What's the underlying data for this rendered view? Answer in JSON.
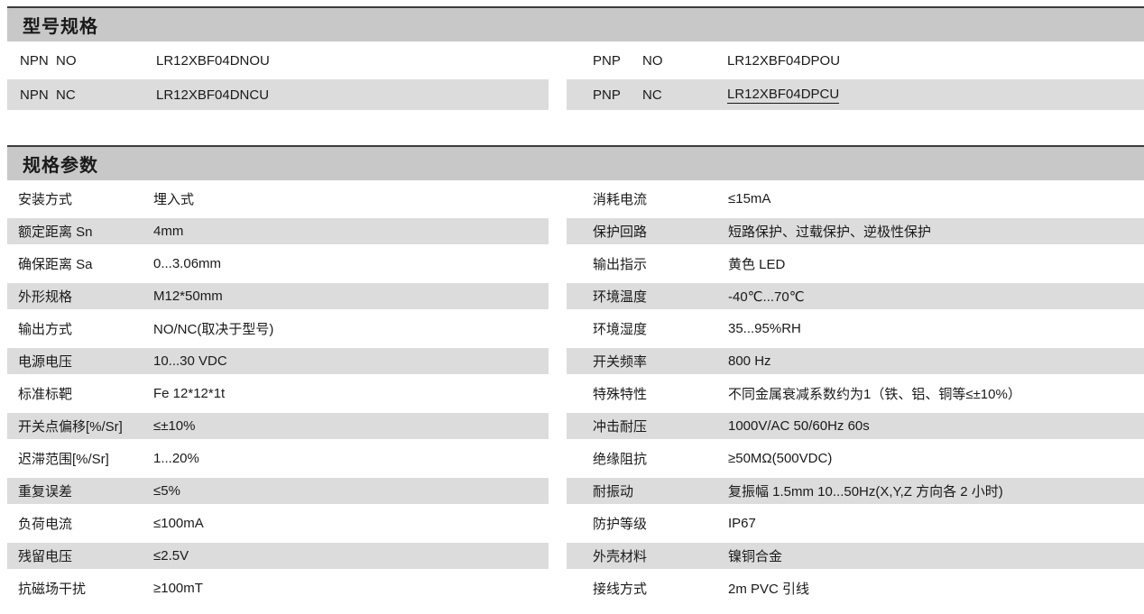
{
  "colors": {
    "header_bg": "#c8c8c8",
    "stripe_bg": "#dcdcdc",
    "top_rule": "#3c3c3c",
    "text": "#1a1a1a"
  },
  "model_section": {
    "title": "型号规格",
    "left_rows": [
      {
        "type": "NPN",
        "state": "NO",
        "model": "LR12XBF04DNOU",
        "shaded": false,
        "underline": false
      },
      {
        "type": "NPN",
        "state": "NC",
        "model": "LR12XBF04DNCU",
        "shaded": true,
        "underline": false
      }
    ],
    "right_rows": [
      {
        "type": "PNP",
        "state": "NO",
        "model": "LR12XBF04DPOU",
        "shaded": false,
        "underline": false
      },
      {
        "type": "PNP",
        "state": "NC",
        "model": "LR12XBF04DPCU",
        "shaded": true,
        "underline": true
      }
    ]
  },
  "params_section": {
    "title": "规格参数",
    "left_rows": [
      {
        "label": "安装方式",
        "value": "埋入式",
        "shaded": false
      },
      {
        "label": "额定距离 Sn",
        "value": "4mm",
        "shaded": true
      },
      {
        "label": "确保距离 Sa",
        "value": "0...3.06mm",
        "shaded": false
      },
      {
        "label": "外形规格",
        "value": "M12*50mm",
        "shaded": true
      },
      {
        "label": "输出方式",
        "value": "NO/NC(取决于型号)",
        "shaded": false
      },
      {
        "label": "电源电压",
        "value": "10...30 VDC",
        "shaded": true
      },
      {
        "label": "标准标靶",
        "value": "Fe 12*12*1t",
        "shaded": false
      },
      {
        "label": "开关点偏移[%/Sr]",
        "value": "≤±10%",
        "shaded": true
      },
      {
        "label": "迟滞范围[%/Sr]",
        "value": "1...20%",
        "shaded": false
      },
      {
        "label": "重复误差",
        "value": "≤5%",
        "shaded": true
      },
      {
        "label": "负荷电流",
        "value": "≤100mA",
        "shaded": false
      },
      {
        "label": "残留电压",
        "value": "≤2.5V",
        "shaded": true
      },
      {
        "label": "抗磁场干扰",
        "value": "≥100mT",
        "shaded": false
      }
    ],
    "right_rows": [
      {
        "label": "消耗电流",
        "value": "≤15mA",
        "shaded": false
      },
      {
        "label": "保护回路",
        "value": "短路保护、过载保护、逆极性保护",
        "shaded": true
      },
      {
        "label": "输出指示",
        "value": "黄色 LED",
        "shaded": false
      },
      {
        "label": "环境温度",
        "value": "-40℃...70℃",
        "shaded": true
      },
      {
        "label": "环境湿度",
        "value": "35...95%RH",
        "shaded": false
      },
      {
        "label": "开关频率",
        "value": "800 Hz",
        "shaded": true
      },
      {
        "label": "特殊特性",
        "value": "不同金属衰减系数约为1（铁、铝、铜等≤±10%）",
        "shaded": false
      },
      {
        "label": "冲击耐压",
        "value": "1000V/AC 50/60Hz 60s",
        "shaded": true
      },
      {
        "label": "绝缘阻抗",
        "value": "≥50MΩ(500VDC)",
        "shaded": false
      },
      {
        "label": "耐振动",
        "value": "复振幅 1.5mm 10...50Hz(X,Y,Z 方向各 2 小时)",
        "shaded": true
      },
      {
        "label": "防护等级",
        "value": "IP67",
        "shaded": false
      },
      {
        "label": "外壳材料",
        "value": "镍铜合金",
        "shaded": true
      },
      {
        "label": "接线方式",
        "value": "2m PVC 引线",
        "shaded": false
      }
    ]
  }
}
